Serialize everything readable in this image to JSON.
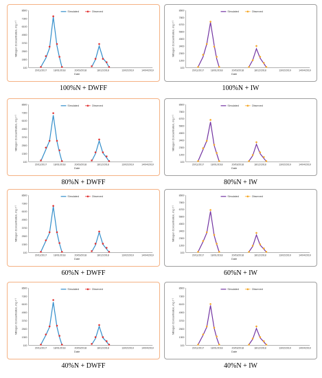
{
  "colors": {
    "dwff_border": "#f4b183",
    "iw_border": "#9e9e9e",
    "dwff_line": "#2e8bc9",
    "dwff_marker": "#e03030",
    "iw_line": "#7030a0",
    "iw_marker": "#f5a623",
    "axis": "#808080"
  },
  "chart_data": [
    {
      "type": "line",
      "caption": "100%N + DWFF",
      "border": "dwff",
      "ylabel": "Nitrogen Concentration, mg l⁻¹",
      "xlabel": "Date",
      "ylim": [
        100,
        8600
      ],
      "yticks": [
        "100",
        "1800",
        "2500",
        "3700",
        "4900",
        "6100",
        "7300",
        "8600"
      ],
      "xticks": [
        "20/11/2017",
        "18/01/2018",
        "20/03/2018",
        "18/12/2018",
        "13/02/2019",
        "14/04/2019"
      ],
      "xtick_pos": [
        0.1,
        0.25,
        0.42,
        0.6,
        0.8,
        0.96
      ],
      "legend": [
        "Simulated",
        "Observed"
      ],
      "simulated": [
        [
          [
            0.1,
            200
          ],
          [
            0.14,
            1500
          ],
          [
            0.17,
            3000
          ],
          [
            0.2,
            7600
          ],
          [
            0.23,
            3300
          ],
          [
            0.25,
            1600
          ],
          [
            0.27,
            150
          ]
        ],
        [
          [
            0.51,
            200
          ],
          [
            0.54,
            1300
          ],
          [
            0.57,
            3300
          ],
          [
            0.6,
            1500
          ],
          [
            0.63,
            800
          ],
          [
            0.65,
            150
          ]
        ]
      ],
      "observed": [
        [
          0.1,
          200
        ],
        [
          0.14,
          1800
        ],
        [
          0.17,
          3200
        ],
        [
          0.2,
          7700
        ],
        [
          0.23,
          3600
        ],
        [
          0.25,
          1700
        ],
        [
          0.27,
          200
        ],
        [
          0.51,
          300
        ],
        [
          0.54,
          1400
        ],
        [
          0.57,
          3600
        ],
        [
          0.6,
          1400
        ],
        [
          0.63,
          900
        ],
        [
          0.65,
          200
        ]
      ]
    },
    {
      "type": "line",
      "caption": "100%N + IW",
      "border": "iw",
      "ylabel": "Nitrogen Concentration, mg l⁻¹",
      "xlabel": "Date",
      "ylim": [
        100,
        8600
      ],
      "yticks": [
        "100",
        "1200",
        "2300",
        "3400",
        "4500",
        "5600",
        "6700",
        "7800",
        "8600"
      ],
      "xticks": [
        "20/11/2017",
        "18/01/2018",
        "20/03/2018",
        "18/12/2018",
        "13/02/2019",
        "14/04/2019"
      ],
      "xtick_pos": [
        0.1,
        0.25,
        0.42,
        0.6,
        0.8,
        0.96
      ],
      "legend": [
        "Simulated",
        "Observed"
      ],
      "simulated": [
        [
          [
            0.1,
            200
          ],
          [
            0.14,
            1700
          ],
          [
            0.17,
            3600
          ],
          [
            0.2,
            6800
          ],
          [
            0.23,
            3400
          ],
          [
            0.25,
            1400
          ],
          [
            0.27,
            150
          ]
        ],
        [
          [
            0.51,
            200
          ],
          [
            0.54,
            1200
          ],
          [
            0.57,
            2900
          ],
          [
            0.6,
            1500
          ],
          [
            0.63,
            700
          ],
          [
            0.65,
            150
          ]
        ]
      ],
      "observed": [
        [
          0.1,
          200
        ],
        [
          0.14,
          2000
        ],
        [
          0.17,
          3600
        ],
        [
          0.2,
          6900
        ],
        [
          0.23,
          3200
        ],
        [
          0.25,
          1700
        ],
        [
          0.27,
          200
        ],
        [
          0.51,
          200
        ],
        [
          0.54,
          1200
        ],
        [
          0.57,
          3300
        ],
        [
          0.6,
          1700
        ],
        [
          0.63,
          800
        ],
        [
          0.65,
          200
        ]
      ]
    },
    {
      "type": "line",
      "caption": "80%N + DWFF",
      "border": "dwff",
      "ylabel": "Nitrogen Concentration, mg l⁻¹",
      "xlabel": "Date",
      "ylim": [
        100,
        8600
      ],
      "yticks": [
        "100",
        "1300",
        "2500",
        "3700",
        "4900",
        "6100",
        "7300",
        "8600"
      ],
      "xticks": [
        "20/11/2017",
        "18/01/2018",
        "20/03/2018",
        "18/12/2018",
        "13/02/2019",
        "14/04/2019"
      ],
      "xtick_pos": [
        0.1,
        0.25,
        0.42,
        0.6,
        0.8,
        0.96
      ],
      "legend": [
        "Simulated",
        "Observed"
      ],
      "simulated": [
        [
          [
            0.1,
            200
          ],
          [
            0.14,
            1900
          ],
          [
            0.17,
            3200
          ],
          [
            0.2,
            7000
          ],
          [
            0.23,
            3100
          ],
          [
            0.25,
            1500
          ],
          [
            0.27,
            150
          ]
        ],
        [
          [
            0.51,
            200
          ],
          [
            0.54,
            1300
          ],
          [
            0.57,
            3200
          ],
          [
            0.6,
            1400
          ],
          [
            0.63,
            700
          ],
          [
            0.65,
            150
          ]
        ]
      ],
      "observed": [
        [
          0.1,
          300
        ],
        [
          0.14,
          2200
        ],
        [
          0.17,
          3200
        ],
        [
          0.2,
          7300
        ],
        [
          0.23,
          3200
        ],
        [
          0.25,
          1800
        ],
        [
          0.27,
          200
        ],
        [
          0.51,
          300
        ],
        [
          0.54,
          1500
        ],
        [
          0.57,
          3400
        ],
        [
          0.6,
          1500
        ],
        [
          0.63,
          900
        ],
        [
          0.65,
          200
        ]
      ]
    },
    {
      "type": "line",
      "caption": "80%N + IW",
      "border": "iw",
      "ylabel": "Nitrogen Concentration, mg l⁻¹",
      "xlabel": "Date",
      "ylim": [
        100,
        8600
      ],
      "yticks": [
        "100",
        "1200",
        "2300",
        "3400",
        "4500",
        "5600",
        "6700",
        "7800",
        "8600"
      ],
      "xticks": [
        "20/11/2017",
        "18/01/2018",
        "20/03/2018",
        "18/12/2018",
        "13/02/2019",
        "14/04/2019"
      ],
      "xtick_pos": [
        0.1,
        0.25,
        0.42,
        0.6,
        0.8,
        0.96
      ],
      "legend": [
        "Simulated",
        "Observed"
      ],
      "simulated": [
        [
          [
            0.1,
            200
          ],
          [
            0.14,
            1900
          ],
          [
            0.17,
            3200
          ],
          [
            0.2,
            6000
          ],
          [
            0.23,
            2500
          ],
          [
            0.25,
            1300
          ],
          [
            0.27,
            150
          ]
        ],
        [
          [
            0.51,
            200
          ],
          [
            0.54,
            1000
          ],
          [
            0.57,
            2700
          ],
          [
            0.6,
            1300
          ],
          [
            0.63,
            600
          ],
          [
            0.65,
            150
          ]
        ]
      ],
      "observed": [
        [
          0.1,
          200
        ],
        [
          0.14,
          2100
        ],
        [
          0.17,
          3200
        ],
        [
          0.2,
          6300
        ],
        [
          0.23,
          2600
        ],
        [
          0.25,
          1400
        ],
        [
          0.27,
          200
        ],
        [
          0.51,
          200
        ],
        [
          0.54,
          1100
        ],
        [
          0.57,
          3000
        ],
        [
          0.6,
          1500
        ],
        [
          0.63,
          800
        ],
        [
          0.65,
          200
        ]
      ]
    },
    {
      "type": "line",
      "caption": "60%N + DWFF",
      "border": "dwff",
      "ylabel": "Nitrogen Concentration, mg l⁻¹",
      "xlabel": "Date",
      "ylim": [
        100,
        8600
      ],
      "yticks": [
        "100",
        "1300",
        "2500",
        "3700",
        "4900",
        "6100",
        "7300",
        "8600"
      ],
      "xticks": [
        "20/11/2017",
        "18/01/2018",
        "20/03/2018",
        "18/12/2018",
        "13/02/2019",
        "14/04/2019"
      ],
      "xtick_pos": [
        0.1,
        0.25,
        0.42,
        0.6,
        0.8,
        0.96
      ],
      "legend": [
        "Simulated",
        "Observed"
      ],
      "simulated": [
        [
          [
            0.1,
            200
          ],
          [
            0.14,
            1800
          ],
          [
            0.17,
            3000
          ],
          [
            0.2,
            6900
          ],
          [
            0.23,
            3000
          ],
          [
            0.25,
            1400
          ],
          [
            0.27,
            150
          ]
        ],
        [
          [
            0.51,
            200
          ],
          [
            0.54,
            1200
          ],
          [
            0.57,
            3100
          ],
          [
            0.6,
            1300
          ],
          [
            0.63,
            600
          ],
          [
            0.65,
            150
          ]
        ]
      ],
      "observed": [
        [
          0.1,
          200
        ],
        [
          0.14,
          1900
        ],
        [
          0.17,
          3100
        ],
        [
          0.2,
          7000
        ],
        [
          0.23,
          3100
        ],
        [
          0.25,
          1500
        ],
        [
          0.27,
          200
        ],
        [
          0.51,
          300
        ],
        [
          0.54,
          1400
        ],
        [
          0.57,
          3200
        ],
        [
          0.6,
          1400
        ],
        [
          0.63,
          800
        ],
        [
          0.65,
          200
        ]
      ]
    },
    {
      "type": "line",
      "caption": "60%N + IW",
      "border": "iw",
      "ylabel": "Nitrogen Concentration, mg l⁻¹",
      "xlabel": "Date",
      "ylim": [
        100,
        8600
      ],
      "yticks": [
        "100",
        "1200",
        "2300",
        "3400",
        "4500",
        "5600",
        "6700",
        "7800",
        "8600"
      ],
      "xticks": [
        "20/11/2017",
        "18/01/2018",
        "20/03/2018",
        "18/12/2018",
        "13/02/2019",
        "14/04/2019"
      ],
      "xtick_pos": [
        0.1,
        0.25,
        0.42,
        0.6,
        0.8,
        0.96
      ],
      "legend": [
        "Simulated",
        "Observed"
      ],
      "simulated": [
        [
          [
            0.1,
            200
          ],
          [
            0.14,
            1700
          ],
          [
            0.17,
            3000
          ],
          [
            0.2,
            6200
          ],
          [
            0.23,
            2600
          ],
          [
            0.25,
            1300
          ],
          [
            0.27,
            150
          ]
        ],
        [
          [
            0.51,
            200
          ],
          [
            0.54,
            1000
          ],
          [
            0.57,
            2700
          ],
          [
            0.6,
            1200
          ],
          [
            0.63,
            600
          ],
          [
            0.65,
            150
          ]
        ]
      ],
      "observed": [
        [
          0.1,
          200
        ],
        [
          0.14,
          1800
        ],
        [
          0.17,
          3100
        ],
        [
          0.2,
          6400
        ],
        [
          0.23,
          2700
        ],
        [
          0.25,
          1400
        ],
        [
          0.27,
          200
        ],
        [
          0.51,
          200
        ],
        [
          0.54,
          1100
        ],
        [
          0.57,
          3000
        ],
        [
          0.6,
          1300
        ],
        [
          0.63,
          700
        ],
        [
          0.65,
          200
        ]
      ]
    },
    {
      "type": "line",
      "caption": "40%N + DWFF",
      "border": "dwff",
      "ylabel": "Nitrogen Concentration, mg l⁻¹",
      "xlabel": "Date",
      "ylim": [
        100,
        8600
      ],
      "yticks": [
        "100",
        "1300",
        "2500",
        "3700",
        "4900",
        "6100",
        "7300",
        "8600"
      ],
      "xticks": [
        "20/11/2017",
        "18/01/2018",
        "20/03/2018",
        "18/12/2018",
        "13/02/2019",
        "14/04/2019"
      ],
      "xtick_pos": [
        0.1,
        0.25,
        0.42,
        0.6,
        0.8,
        0.96
      ],
      "legend": [
        "Simulated",
        "Observed"
      ],
      "simulated": [
        [
          [
            0.1,
            200
          ],
          [
            0.14,
            1600
          ],
          [
            0.17,
            2800
          ],
          [
            0.2,
            6500
          ],
          [
            0.23,
            2800
          ],
          [
            0.25,
            1300
          ],
          [
            0.27,
            150
          ]
        ],
        [
          [
            0.51,
            200
          ],
          [
            0.54,
            1100
          ],
          [
            0.57,
            2900
          ],
          [
            0.6,
            1200
          ],
          [
            0.63,
            600
          ],
          [
            0.65,
            150
          ]
        ]
      ],
      "observed": [
        [
          0.1,
          200
        ],
        [
          0.14,
          1700
        ],
        [
          0.17,
          2900
        ],
        [
          0.2,
          6800
        ],
        [
          0.23,
          3000
        ],
        [
          0.25,
          1500
        ],
        [
          0.27,
          200
        ],
        [
          0.51,
          300
        ],
        [
          0.54,
          1300
        ],
        [
          0.57,
          3100
        ],
        [
          0.6,
          1300
        ],
        [
          0.63,
          700
        ],
        [
          0.65,
          200
        ]
      ]
    },
    {
      "type": "line",
      "caption": "40%N + IW",
      "border": "iw",
      "ylabel": "Nitrogen Concentration, mg l⁻¹",
      "xlabel": "Date",
      "ylim": [
        100,
        8600
      ],
      "yticks": [
        "100",
        "1300",
        "2500",
        "3700",
        "4900",
        "6100",
        "7300",
        "8600"
      ],
      "xticks": [
        "20/11/2017",
        "18/01/2018",
        "20/03/2018",
        "18/12/2018",
        "13/02/2019",
        "14/04/2019"
      ],
      "xtick_pos": [
        0.1,
        0.25,
        0.42,
        0.6,
        0.8,
        0.96
      ],
      "legend": [
        "Simulated",
        "Observed"
      ],
      "simulated": [
        [
          [
            0.1,
            200
          ],
          [
            0.14,
            1600
          ],
          [
            0.17,
            2800
          ],
          [
            0.2,
            6000
          ],
          [
            0.23,
            2600
          ],
          [
            0.25,
            1200
          ],
          [
            0.27,
            150
          ]
        ],
        [
          [
            0.51,
            200
          ],
          [
            0.54,
            1000
          ],
          [
            0.57,
            2600
          ],
          [
            0.6,
            1200
          ],
          [
            0.63,
            600
          ],
          [
            0.65,
            150
          ]
        ]
      ],
      "observed": [
        [
          0.1,
          200
        ],
        [
          0.14,
          1700
        ],
        [
          0.17,
          2900
        ],
        [
          0.2,
          6200
        ],
        [
          0.23,
          2700
        ],
        [
          0.25,
          1400
        ],
        [
          0.27,
          200
        ],
        [
          0.51,
          200
        ],
        [
          0.54,
          1100
        ],
        [
          0.57,
          2900
        ],
        [
          0.6,
          1300
        ],
        [
          0.63,
          700
        ],
        [
          0.65,
          200
        ]
      ]
    }
  ]
}
